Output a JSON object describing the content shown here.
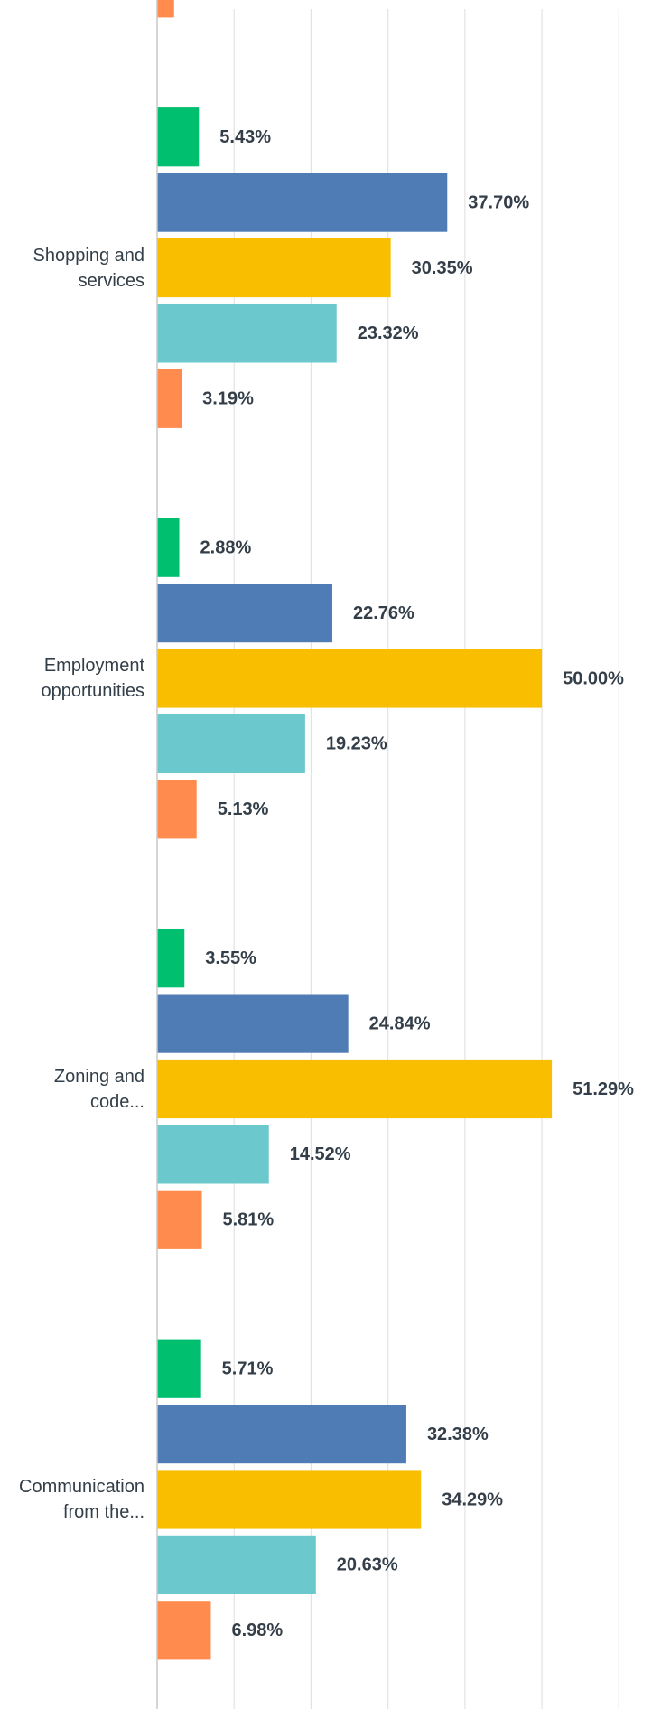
{
  "chart_data": {
    "type": "hbar_grouped",
    "categories": [
      null,
      "Shopping and services",
      "Employment opportunities",
      "Zoning and code...",
      "Communication from the..."
    ],
    "series": [
      {
        "color": "#00bf6f",
        "values": [
          null,
          5.43,
          2.88,
          3.55,
          5.71
        ],
        "value_labels": [
          null,
          "5.43%",
          "2.88%",
          "3.55%",
          "5.71%"
        ]
      },
      {
        "color": "#507cb6",
        "values": [
          null,
          37.7,
          22.76,
          24.84,
          32.38
        ],
        "value_labels": [
          null,
          "37.70%",
          "22.76%",
          "24.84%",
          "32.38%"
        ]
      },
      {
        "color": "#f9be00",
        "values": [
          null,
          30.35,
          50.0,
          51.29,
          34.29
        ],
        "value_labels": [
          null,
          "30.35%",
          "50.00%",
          "51.29%",
          "34.29%"
        ]
      },
      {
        "color": "#6bc8cd",
        "values": [
          null,
          23.32,
          19.23,
          14.52,
          20.63
        ],
        "value_labels": [
          null,
          "23.32%",
          "19.23%",
          "14.52%",
          "20.63%"
        ]
      },
      {
        "color": "#ff8b4f",
        "values": [
          2.2,
          3.19,
          5.13,
          5.81,
          6.98
        ],
        "value_labels": [
          null,
          "3.19%",
          "5.13%",
          "5.81%",
          "6.98%"
        ]
      }
    ],
    "xlim": [
      0,
      60
    ],
    "xticks": [
      0,
      10,
      20,
      30,
      40,
      50,
      60
    ],
    "grid": true
  }
}
